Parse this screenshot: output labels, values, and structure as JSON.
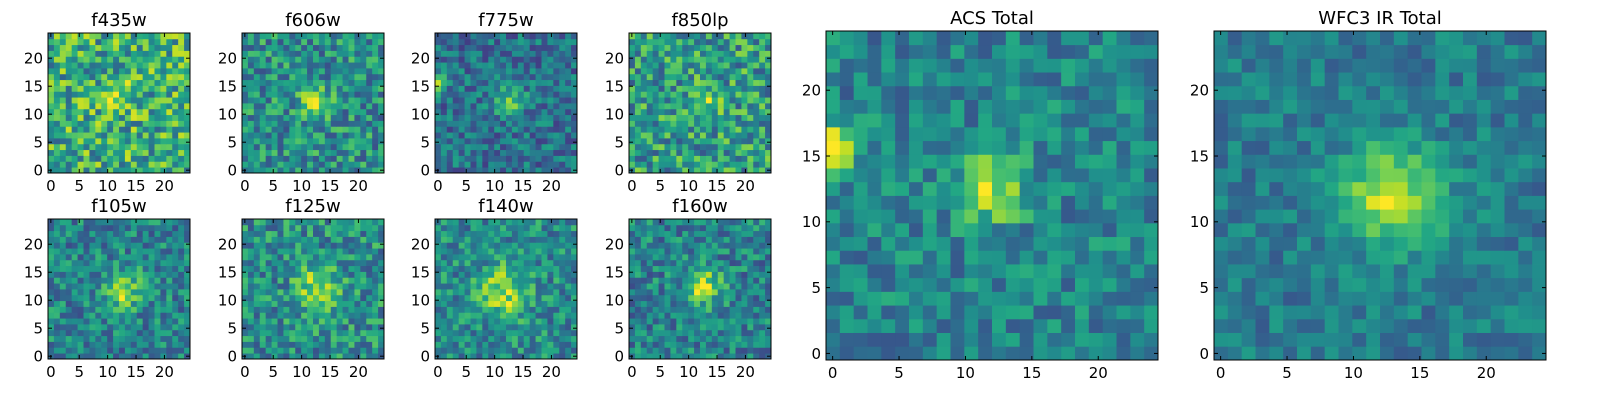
{
  "chart_data": [
    {
      "type": "heatmap",
      "title": "f435w",
      "xlim": [
        0,
        24
      ],
      "ylim": [
        0,
        24
      ],
      "xticks": [
        0,
        5,
        10,
        15,
        20
      ],
      "yticks": [
        0,
        5,
        10,
        15,
        20
      ],
      "colormap": "viridis",
      "grid": false,
      "size": 24,
      "seed": 11,
      "peak": {
        "x": 12,
        "y": 13,
        "sigma": 2.0,
        "amplitude": 0.2
      },
      "noise": 0.3,
      "base": 0.62
    },
    {
      "type": "heatmap",
      "title": "f606w",
      "xlim": [
        0,
        24
      ],
      "ylim": [
        0,
        24
      ],
      "xticks": [
        0,
        5,
        10,
        15,
        20
      ],
      "yticks": [
        0,
        5,
        10,
        15,
        20
      ],
      "colormap": "viridis",
      "grid": false,
      "size": 24,
      "seed": 23,
      "peak": {
        "x": 12.5,
        "y": 12,
        "sigma": 1.8,
        "amplitude": 0.45
      },
      "noise": 0.25,
      "base": 0.5
    },
    {
      "type": "heatmap",
      "title": "f775w",
      "xlim": [
        0,
        24
      ],
      "ylim": [
        0,
        24
      ],
      "xticks": [
        0,
        5,
        10,
        15,
        20
      ],
      "yticks": [
        0,
        5,
        10,
        15,
        20
      ],
      "colormap": "viridis",
      "grid": false,
      "size": 24,
      "seed": 37,
      "peak": {
        "x": 12.5,
        "y": 12.5,
        "sigma": 1.8,
        "amplitude": 0.35
      },
      "noise": 0.2,
      "base": 0.38,
      "extra": {
        "x": 0.5,
        "y": 15.5,
        "sigma": 1.0,
        "amplitude": 0.55
      }
    },
    {
      "type": "heatmap",
      "title": "f850lp",
      "xlim": [
        0,
        24
      ],
      "ylim": [
        0,
        24
      ],
      "xticks": [
        0,
        5,
        10,
        15,
        20
      ],
      "yticks": [
        0,
        5,
        10,
        15,
        20
      ],
      "colormap": "viridis",
      "grid": false,
      "size": 24,
      "seed": 41,
      "peak": {
        "x": 12.5,
        "y": 12,
        "sigma": 1.6,
        "amplitude": 0.3
      },
      "noise": 0.28,
      "base": 0.55
    },
    {
      "type": "heatmap",
      "title": "f105w",
      "xlim": [
        0,
        24
      ],
      "ylim": [
        0,
        24
      ],
      "xticks": [
        0,
        5,
        10,
        15,
        20
      ],
      "yticks": [
        0,
        5,
        10,
        15,
        20
      ],
      "colormap": "viridis",
      "grid": false,
      "size": 24,
      "seed": 53,
      "peak": {
        "x": 12.5,
        "y": 12,
        "sigma": 2.2,
        "amplitude": 0.45
      },
      "noise": 0.22,
      "base": 0.45
    },
    {
      "type": "heatmap",
      "title": "f125w",
      "xlim": [
        0,
        24
      ],
      "ylim": [
        0,
        24
      ],
      "xticks": [
        0,
        5,
        10,
        15,
        20
      ],
      "yticks": [
        0,
        5,
        10,
        15,
        20
      ],
      "colormap": "viridis",
      "grid": false,
      "size": 24,
      "seed": 67,
      "peak": {
        "x": 13,
        "y": 12.5,
        "sigma": 2.4,
        "amplitude": 0.4
      },
      "noise": 0.24,
      "base": 0.5
    },
    {
      "type": "heatmap",
      "title": "f140w",
      "xlim": [
        0,
        24
      ],
      "ylim": [
        0,
        24
      ],
      "xticks": [
        0,
        5,
        10,
        15,
        20
      ],
      "yticks": [
        0,
        5,
        10,
        15,
        20
      ],
      "colormap": "viridis",
      "grid": false,
      "size": 24,
      "seed": 79,
      "peak": {
        "x": 11.5,
        "y": 11.5,
        "sigma": 3.0,
        "amplitude": 0.4
      },
      "noise": 0.22,
      "base": 0.48
    },
    {
      "type": "heatmap",
      "title": "f160w",
      "xlim": [
        0,
        24
      ],
      "ylim": [
        0,
        24
      ],
      "xticks": [
        0,
        5,
        10,
        15,
        20
      ],
      "yticks": [
        0,
        5,
        10,
        15,
        20
      ],
      "colormap": "viridis",
      "grid": false,
      "size": 24,
      "seed": 83,
      "peak": {
        "x": 12.5,
        "y": 12.5,
        "sigma": 2.0,
        "amplitude": 0.5
      },
      "noise": 0.22,
      "base": 0.45
    },
    {
      "type": "heatmap",
      "title": "ACS Total",
      "xlim": [
        0,
        24
      ],
      "ylim": [
        0,
        24
      ],
      "xticks": [
        0,
        5,
        10,
        15,
        20
      ],
      "yticks": [
        0,
        5,
        10,
        15,
        20
      ],
      "colormap": "viridis",
      "grid": false,
      "size": 24,
      "seed": 97,
      "peak": {
        "x": 12,
        "y": 12.5,
        "sigma": 1.7,
        "amplitude": 0.45
      },
      "noise": 0.18,
      "base": 0.45,
      "extra": {
        "x": 0.7,
        "y": 15.5,
        "sigma": 1.1,
        "amplitude": 0.55
      }
    },
    {
      "type": "heatmap",
      "title": "WFC3 IR Total",
      "xlim": [
        0,
        24
      ],
      "ylim": [
        0,
        24
      ],
      "xticks": [
        0,
        5,
        10,
        15,
        20
      ],
      "yticks": [
        0,
        5,
        10,
        15,
        20
      ],
      "colormap": "viridis",
      "grid": false,
      "size": 24,
      "seed": 101,
      "peak": {
        "x": 12.5,
        "y": 12,
        "sigma": 2.6,
        "amplitude": 0.5
      },
      "noise": 0.14,
      "base": 0.42
    }
  ]
}
